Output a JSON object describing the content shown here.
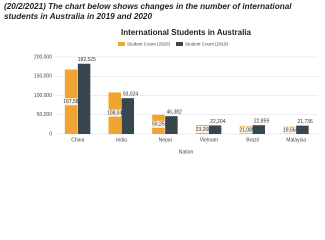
{
  "heading": "(20/2/2021) The chart below shows changes in the number of international students in Australia in 2019 and 2020",
  "chart_data": {
    "type": "bar",
    "title": "International Students in Australia",
    "x_label": "Nation",
    "categories": [
      "China",
      "India",
      "Nepal",
      "Vietnam",
      "Brazil",
      "Malaysia"
    ],
    "series": [
      {
        "name": "Student Count (2020)",
        "color": "#f0a532",
        "values": [
          167588,
          108041,
          50253,
          23268,
          21089,
          19564
        ],
        "value_labels": [
          "167,588",
          "108,041",
          "50,253",
          "23,268",
          "21,089",
          "19,564"
        ]
      },
      {
        "name": "Student Count (2019)",
        "color": "#37474f",
        "values": [
          182525,
          93024,
          46382,
          22204,
          22859,
          21736
        ],
        "value_labels": [
          "182,525",
          "93,024",
          "46,382",
          "22,204",
          "22,859",
          "21,736"
        ]
      }
    ],
    "ylim": [
      0,
      200000
    ],
    "yticks": [
      0,
      {
        "value": 50000,
        "label": "50,000"
      },
      {
        "value": 100000,
        "label": "100,000"
      },
      {
        "value": 150000,
        "label": "150,000"
      },
      {
        "value": 200000,
        "label": "200,000"
      }
    ],
    "grid": true,
    "legend": "top"
  }
}
